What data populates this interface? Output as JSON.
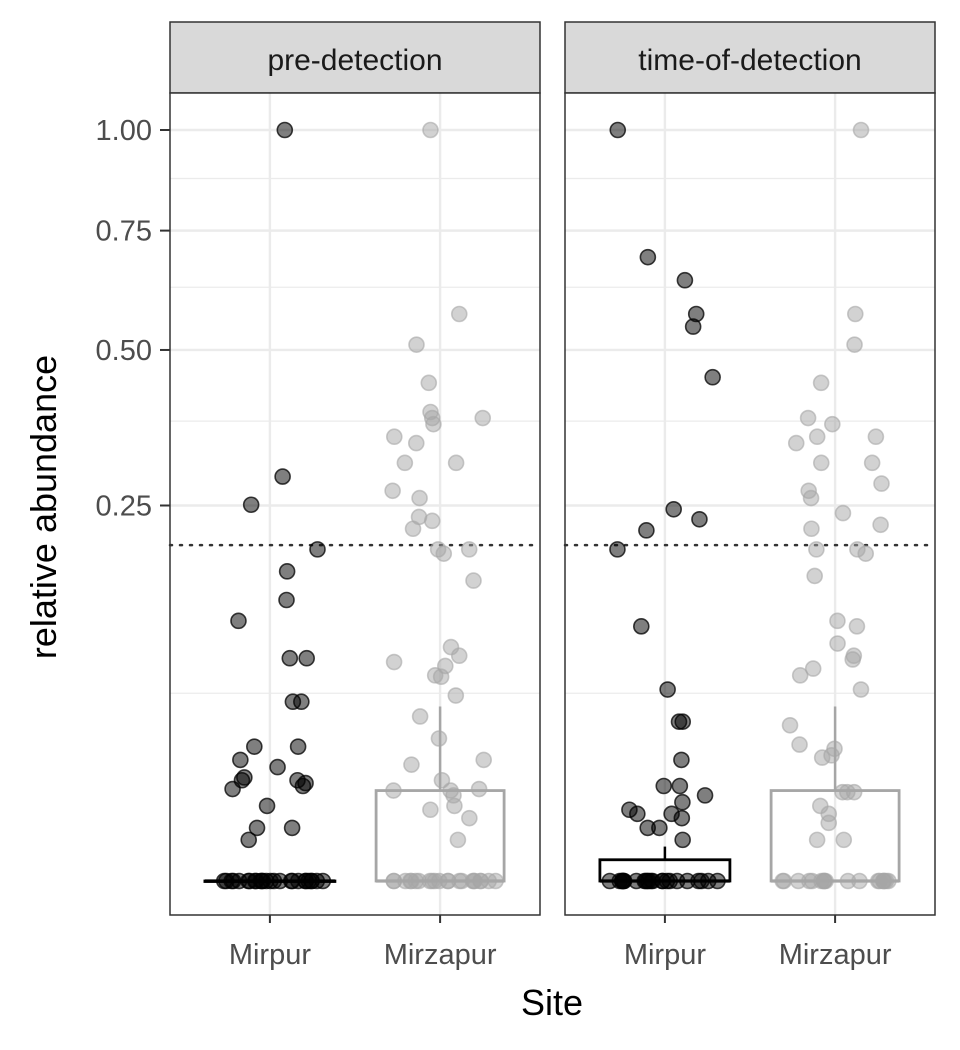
{
  "chart_data": {
    "type": "scatter",
    "subtype": "jittered box plot with points, faceted",
    "xlabel": "Site",
    "ylabel": "relative abundance",
    "y_scale": "sqrt",
    "ylim": [
      0,
      1.0
    ],
    "yticks": [
      0.25,
      0.5,
      0.75,
      1.0
    ],
    "ytick_labels": [
      "0.25",
      "0.50",
      "0.75",
      "1.00"
    ],
    "categories": [
      "Mirpur",
      "Mirzapur"
    ],
    "threshold_line": 0.2,
    "grid": true,
    "legend": "none",
    "colors": {
      "Mirpur": "#000000",
      "Mirzapur": "#a6a6a6"
    },
    "facets": [
      {
        "label": "pre-detection",
        "series": [
          {
            "category": "Mirpur",
            "box": {
              "min": 0,
              "q1": 0,
              "median": 0,
              "q3": 0,
              "max": 0
            },
            "values": [
              1.0,
              0.251,
              0.29,
              0.195,
              0.17,
              0.14,
              0.12,
              0.088,
              0.088,
              0.057,
              0.057,
              0.032,
              0.032,
              0.026,
              0.023,
              0.019,
              0.018,
              0.018,
              0.017,
              0.016,
              0.015,
              0.01,
              0.005,
              0.005,
              0.003,
              0,
              0,
              0,
              0,
              0,
              0,
              0,
              0,
              0,
              0,
              0,
              0,
              0,
              0,
              0,
              0,
              0,
              0,
              0,
              0,
              0,
              0,
              0,
              0,
              0,
              0
            ]
          },
          {
            "category": "Mirzapur",
            "box": {
              "min": 0,
              "q1": 0,
              "median": 0,
              "q3": 0.0145,
              "max": 0.054
            },
            "values": [
              1.0,
              0.57,
              0.51,
              0.44,
              0.39,
              0.38,
              0.38,
              0.37,
              0.35,
              0.34,
              0.31,
              0.31,
              0.27,
              0.26,
              0.235,
              0.23,
              0.22,
              0.195,
              0.195,
              0.19,
              0.16,
              0.097,
              0.09,
              0.085,
              0.082,
              0.075,
              0.074,
              0.061,
              0.048,
              0.036,
              0.026,
              0.024,
              0.018,
              0.015,
              0.0145,
              0.0145,
              0.013,
              0.01,
              0.009,
              0.007,
              0.003,
              0,
              0,
              0,
              0,
              0,
              0,
              0,
              0,
              0,
              0,
              0,
              0,
              0,
              0,
              0,
              0,
              0,
              0,
              0,
              0,
              0,
              0
            ]
          }
        ]
      },
      {
        "label": "time-of-detection",
        "series": [
          {
            "category": "Mirpur",
            "box": {
              "min": 0,
              "q1": 0,
              "median": 0,
              "q3": 0.0008,
              "max": 0.0021
            },
            "values": [
              1.0,
              0.69,
              0.64,
              0.57,
              0.545,
              0.45,
              0.245,
              0.232,
              0.218,
              0.195,
              0.115,
              0.065,
              0.045,
              0.045,
              0.026,
              0.016,
              0.016,
              0.013,
              0.011,
              0.009,
              0.008,
              0.008,
              0.007,
              0.005,
              0.005,
              0.003,
              0,
              0,
              0,
              0,
              0,
              0,
              0,
              0,
              0,
              0,
              0,
              0,
              0,
              0,
              0,
              0,
              0,
              0,
              0,
              0,
              0,
              0,
              0,
              0
            ]
          },
          {
            "category": "Mirzapur",
            "box": {
              "min": 0,
              "q1": 0,
              "median": 0,
              "q3": 0.0145,
              "max": 0.054
            },
            "values": [
              1.0,
              0.57,
              0.51,
              0.44,
              0.38,
              0.37,
              0.35,
              0.35,
              0.34,
              0.31,
              0.31,
              0.28,
              0.27,
              0.26,
              0.24,
              0.225,
              0.22,
              0.195,
              0.195,
              0.19,
              0.165,
              0.12,
              0.115,
              0.1,
              0.09,
              0.087,
              0.08,
              0.075,
              0.065,
              0.043,
              0.033,
              0.031,
              0.028,
              0.027,
              0.014,
              0.014,
              0.014,
              0.01,
              0.008,
              0.006,
              0.003,
              0.003,
              0,
              0,
              0,
              0,
              0,
              0,
              0,
              0,
              0,
              0,
              0,
              0,
              0,
              0,
              0,
              0,
              0,
              0,
              0
            ]
          }
        ]
      }
    ]
  }
}
